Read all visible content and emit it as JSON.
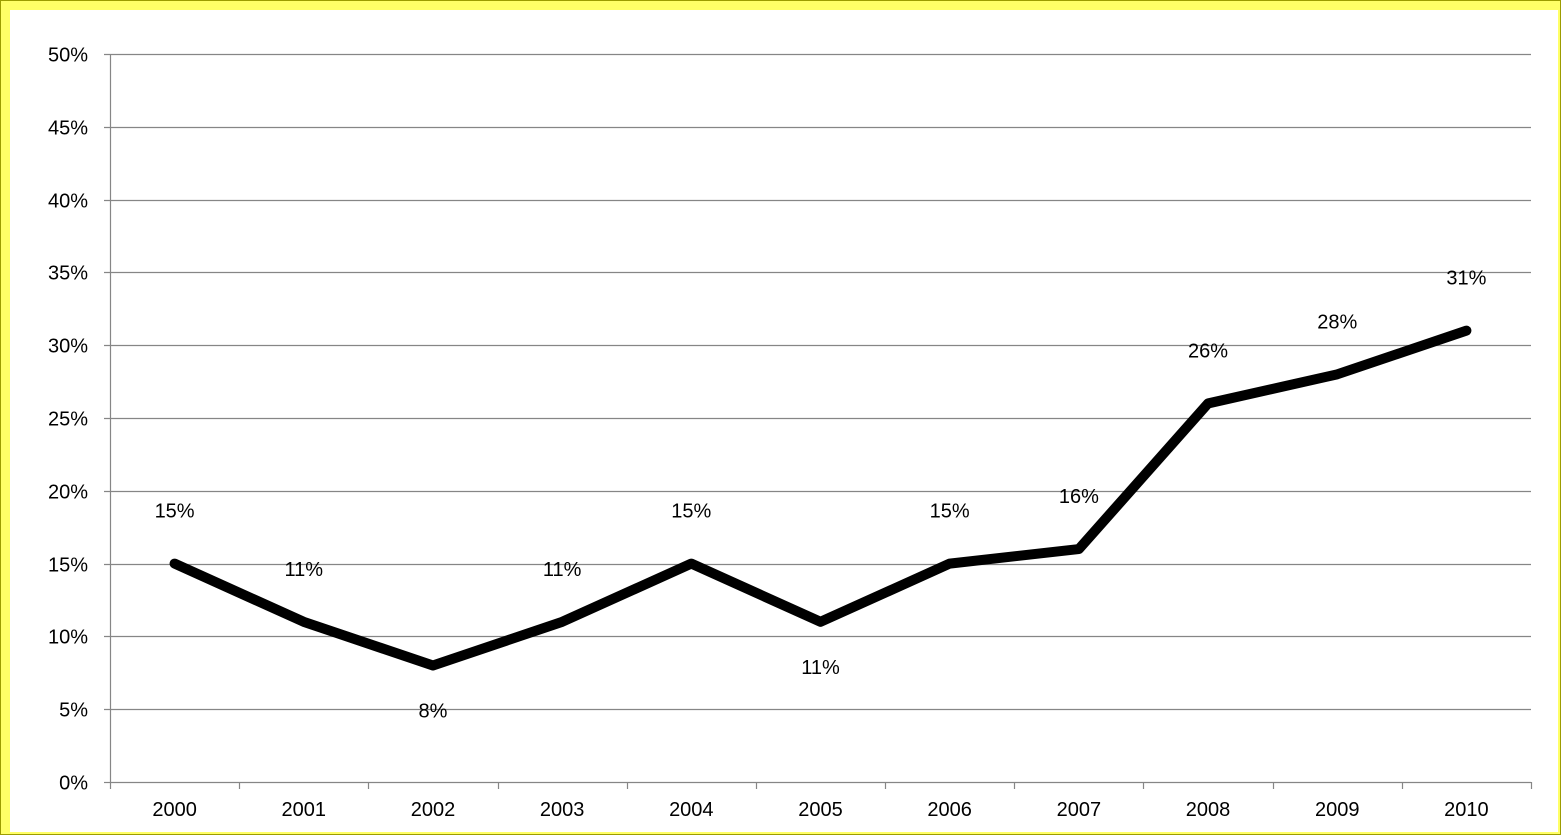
{
  "chart_data": {
    "type": "line",
    "title": "",
    "xlabel": "",
    "ylabel": "",
    "categories": [
      "2000",
      "2001",
      "2002",
      "2003",
      "2004",
      "2005",
      "2006",
      "2007",
      "2008",
      "2009",
      "2010"
    ],
    "series": [
      {
        "values": [
          15,
          11,
          8,
          11,
          15,
          11,
          15,
          16,
          26,
          28,
          31
        ],
        "data_labels": [
          "15%",
          "11%",
          "8%",
          "11%",
          "15%",
          "11%",
          "15%",
          "16%",
          "26%",
          "28%",
          "31%"
        ]
      }
    ],
    "ylim": [
      0,
      50
    ],
    "y_ticks": [
      0,
      5,
      10,
      15,
      20,
      25,
      30,
      35,
      40,
      45,
      50
    ],
    "y_tick_labels": [
      "0%",
      "5%",
      "10%",
      "15%",
      "20%",
      "25%",
      "30%",
      "35%",
      "40%",
      "45%",
      "50%"
    ],
    "grid": true,
    "legend": "none",
    "colors": {
      "line": "#000000",
      "grid": "#868686",
      "frame": "#FFFF66"
    }
  }
}
